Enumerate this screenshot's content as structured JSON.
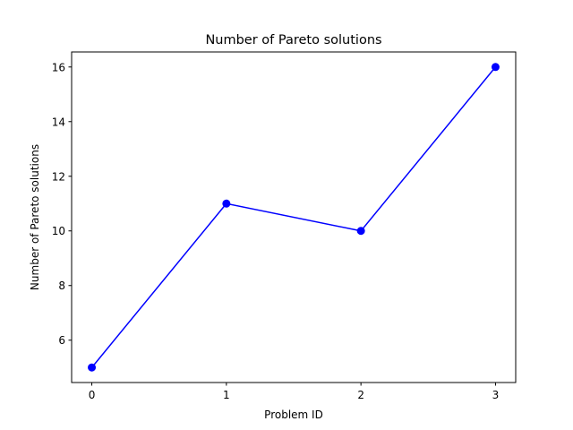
{
  "chart_data": {
    "type": "line",
    "title": "Number of Pareto solutions",
    "xlabel": "Problem ID",
    "ylabel": "Number of Pareto solutions",
    "x": [
      0,
      1,
      2,
      3
    ],
    "series": [
      {
        "values": [
          5,
          11,
          10,
          16
        ],
        "color": "#0000ff",
        "marker": "circle"
      }
    ],
    "xticks": [
      0,
      1,
      2,
      3
    ],
    "yticks": [
      6,
      8,
      10,
      12,
      14,
      16
    ],
    "xlim": [
      -0.15,
      3.15
    ],
    "ylim": [
      4.45,
      16.55
    ],
    "grid": false
  }
}
